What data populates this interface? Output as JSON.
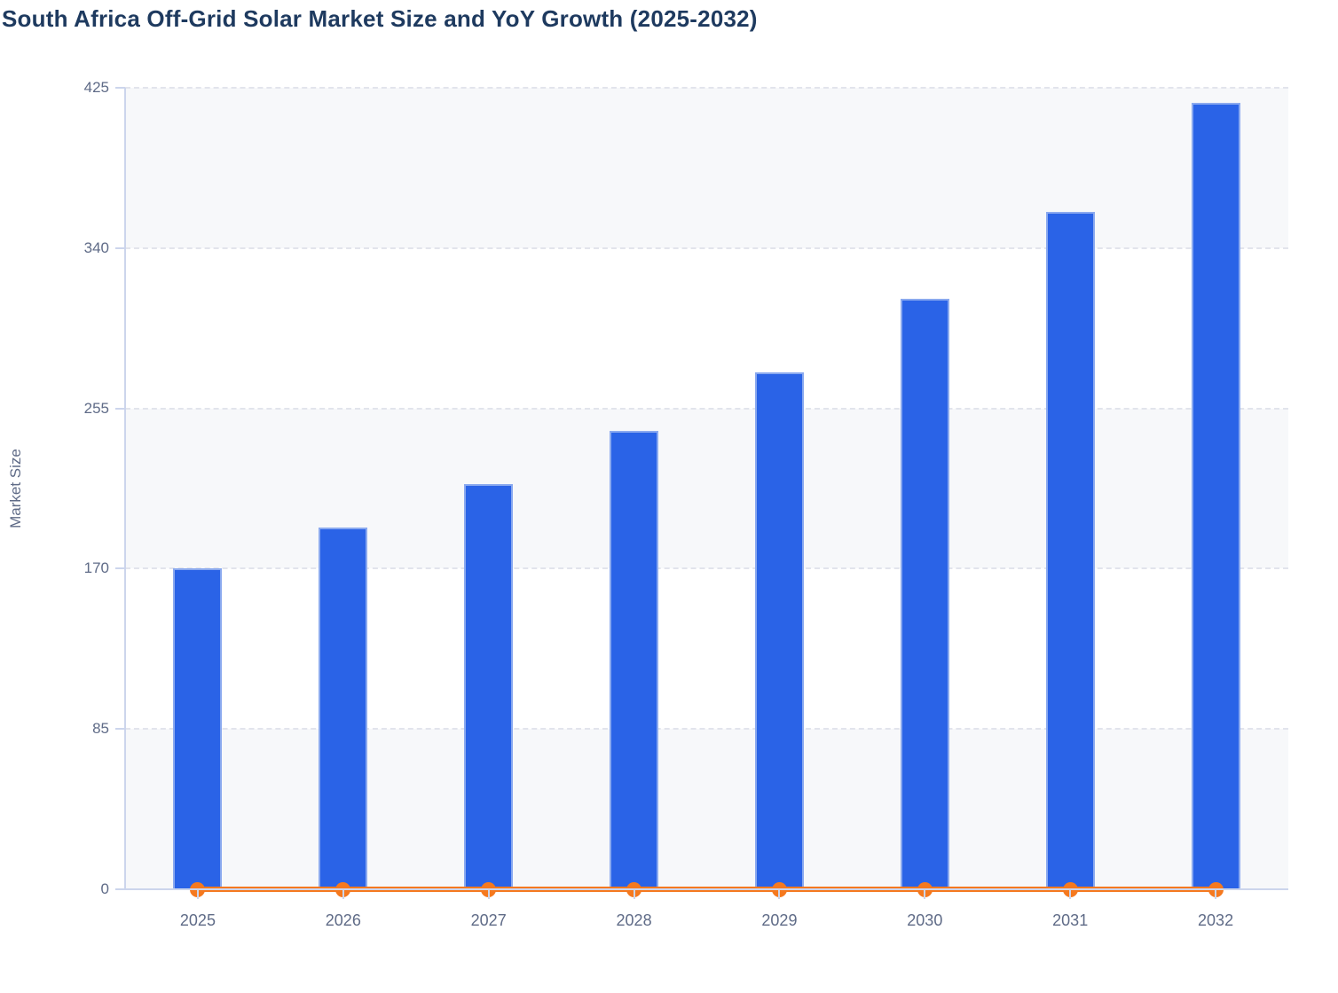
{
  "chart_data": {
    "type": "bar",
    "title": "South Africa Off-Grid Solar Market Size and YoY Growth (2025-2032)",
    "xlabel": "",
    "ylabel": "Market Size",
    "ylim": [
      0,
      425
    ],
    "yticks": [
      0,
      85,
      170,
      255,
      340,
      425
    ],
    "categories": [
      "2025",
      "2026",
      "2027",
      "2028",
      "2029",
      "2030",
      "2031",
      "2032"
    ],
    "series": [
      {
        "name": "Market Size",
        "type": "bar",
        "values": [
          170,
          192,
          215,
          243,
          274,
          313,
          359,
          417
        ]
      },
      {
        "name": "YoY Growth",
        "type": "line",
        "values": [
          0,
          0,
          0,
          0,
          0,
          0,
          0,
          0
        ]
      }
    ],
    "legend_position": "none",
    "grid": "horizontal-dashed",
    "plot_bands": "alternating light-grey / white between gridlines"
  },
  "colors": {
    "bar_fill": "#2a63e7",
    "bar_border": "#8aa9ef",
    "line": "#f5791f",
    "title_text": "#1e3a5f",
    "axis_text": "#5f6b87",
    "axis_line": "#ccd5ec",
    "gridline": "#e2e4ec",
    "band_grey": "#f7f8fa",
    "band_white": "#ffffff"
  }
}
